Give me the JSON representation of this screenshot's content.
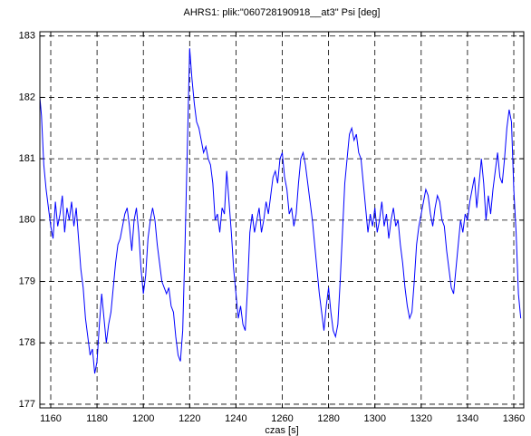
{
  "chart_data": {
    "type": "line",
    "title": "AHRS1: plik:\"060728190918__at3\"   Psi [deg]",
    "x_label": "czas [s]",
    "grid": true,
    "xlim": [
      1155.3,
      1364.3
    ],
    "ylim": [
      176.94,
      183.07
    ],
    "xticks": [
      1160,
      1180,
      1200,
      1220,
      1240,
      1260,
      1280,
      1300,
      1320,
      1340,
      1360
    ],
    "yticks": [
      177,
      178,
      179,
      180,
      181,
      182,
      183
    ],
    "x": [
      1155.3,
      1156,
      1157,
      1158,
      1159,
      1160,
      1161,
      1162,
      1163,
      1164,
      1165,
      1166,
      1167,
      1168,
      1169,
      1170,
      1171,
      1172,
      1173,
      1174,
      1175,
      1176,
      1177,
      1178,
      1179,
      1180,
      1181,
      1182,
      1183,
      1184,
      1185,
      1186,
      1187,
      1188,
      1189,
      1190,
      1191,
      1192,
      1193,
      1194,
      1195,
      1196,
      1197,
      1198,
      1199,
      1200,
      1201,
      1202,
      1203,
      1204,
      1205,
      1206,
      1207,
      1208,
      1209,
      1210,
      1211,
      1212,
      1213,
      1214,
      1215,
      1216,
      1217,
      1218,
      1219,
      1220,
      1221,
      1222,
      1223,
      1224,
      1225,
      1226,
      1227,
      1228,
      1229,
      1230,
      1231,
      1232,
      1233,
      1234,
      1235,
      1236,
      1237,
      1238,
      1239,
      1240,
      1241,
      1242,
      1243,
      1244,
      1245,
      1246,
      1247,
      1248,
      1249,
      1250,
      1251,
      1252,
      1253,
      1254,
      1255,
      1256,
      1257,
      1258,
      1259,
      1260,
      1261,
      1262,
      1263,
      1264,
      1265,
      1266,
      1267,
      1268,
      1269,
      1270,
      1271,
      1272,
      1273,
      1274,
      1275,
      1276,
      1277,
      1278,
      1279,
      1280,
      1281,
      1282,
      1283,
      1284,
      1285,
      1286,
      1287,
      1288,
      1289,
      1290,
      1291,
      1292,
      1293,
      1294,
      1295,
      1296,
      1297,
      1298,
      1299,
      1300,
      1301,
      1302,
      1303,
      1304,
      1305,
      1306,
      1307,
      1308,
      1309,
      1310,
      1311,
      1312,
      1313,
      1314,
      1315,
      1316,
      1317,
      1318,
      1319,
      1320,
      1321,
      1322,
      1323,
      1324,
      1325,
      1326,
      1327,
      1328,
      1329,
      1330,
      1331,
      1332,
      1333,
      1334,
      1335,
      1336,
      1337,
      1338,
      1339,
      1340,
      1341,
      1342,
      1343,
      1344,
      1345,
      1346,
      1347,
      1348,
      1349,
      1350,
      1351,
      1352,
      1353,
      1354,
      1355,
      1356,
      1357,
      1358,
      1359,
      1360,
      1361,
      1362,
      1363
    ],
    "series": [
      {
        "color": "#0000ff",
        "values": [
          182.0,
          181.7,
          180.9,
          180.5,
          180.2,
          179.9,
          179.7,
          180.3,
          179.9,
          180.1,
          180.4,
          179.8,
          180.2,
          180.0,
          180.3,
          179.9,
          180.2,
          179.7,
          179.2,
          178.9,
          178.4,
          178.1,
          177.8,
          177.9,
          177.5,
          177.7,
          178.3,
          178.8,
          178.4,
          178.0,
          178.3,
          178.5,
          178.9,
          179.3,
          179.6,
          179.7,
          179.9,
          180.1,
          180.2,
          179.9,
          179.5,
          180.0,
          180.2,
          179.8,
          179.2,
          178.8,
          179.1,
          179.7,
          180.0,
          180.2,
          180.0,
          179.6,
          179.3,
          179.0,
          178.9,
          178.8,
          178.9,
          178.6,
          178.5,
          178.1,
          177.8,
          177.7,
          178.2,
          179.6,
          181.2,
          182.8,
          182.3,
          181.9,
          181.6,
          181.5,
          181.3,
          181.1,
          181.2,
          181.0,
          180.9,
          180.6,
          180.0,
          180.1,
          179.8,
          180.2,
          180.1,
          180.8,
          180.3,
          179.8,
          179.2,
          178.8,
          178.4,
          178.6,
          178.3,
          178.2,
          178.9,
          179.8,
          180.1,
          179.8,
          180.0,
          180.2,
          179.8,
          180.0,
          180.3,
          180.1,
          180.4,
          180.7,
          180.8,
          180.6,
          181.0,
          181.1,
          180.7,
          180.5,
          180.1,
          180.2,
          179.9,
          180.1,
          180.6,
          181.0,
          181.1,
          180.9,
          180.6,
          180.3,
          180.0,
          179.6,
          179.2,
          178.8,
          178.5,
          178.2,
          178.6,
          178.9,
          178.5,
          178.2,
          178.1,
          178.3,
          179.0,
          179.8,
          180.6,
          181.0,
          181.4,
          181.5,
          181.3,
          181.4,
          181.1,
          181.0,
          180.6,
          180.2,
          179.8,
          180.1,
          179.9,
          180.2,
          179.8,
          180.0,
          180.3,
          179.9,
          180.1,
          179.7,
          180.0,
          180.2,
          179.9,
          180.0,
          179.6,
          179.3,
          178.9,
          178.6,
          178.4,
          178.5,
          179.0,
          179.6,
          179.9,
          180.1,
          180.3,
          180.5,
          180.4,
          180.1,
          179.9,
          180.2,
          180.4,
          180.3,
          180.0,
          179.9,
          179.5,
          179.2,
          178.9,
          178.8,
          179.2,
          179.6,
          180.0,
          179.8,
          180.1,
          180.0,
          180.3,
          180.5,
          180.7,
          180.2,
          180.6,
          181.0,
          180.6,
          180.0,
          180.4,
          180.1,
          180.5,
          180.8,
          181.1,
          180.7,
          180.6,
          181.0,
          181.5,
          181.8,
          181.6,
          180.5,
          179.8,
          178.8,
          178.4
        ]
      }
    ]
  }
}
